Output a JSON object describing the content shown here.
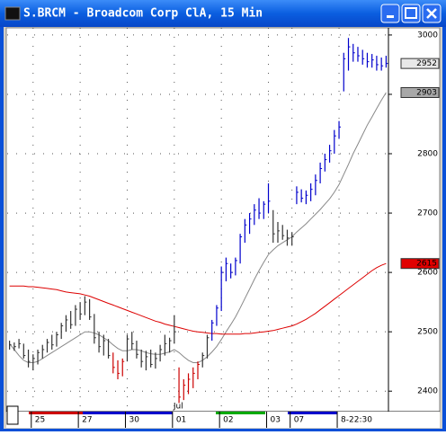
{
  "chart_data": {
    "type": "ohlc",
    "title": "S.BRCM - Broadcom Corp ClA, 15 Min",
    "categories": [
      null,
      null,
      null,
      null,
      null,
      "25",
      null,
      null,
      null,
      null,
      null,
      null,
      null,
      null,
      null,
      "27",
      null,
      null,
      null,
      null,
      null,
      null,
      null,
      null,
      null,
      "30",
      null,
      null,
      null,
      null,
      null,
      null,
      null,
      null,
      null,
      "01",
      null,
      null,
      null,
      null,
      null,
      null,
      null,
      null,
      null,
      "02",
      null,
      null,
      null,
      null,
      null,
      null,
      null,
      null,
      null,
      "03",
      null,
      null,
      null,
      null,
      "07",
      null,
      null,
      null,
      null,
      null,
      null,
      null,
      null,
      null,
      "8-22:30",
      null,
      null,
      null,
      null,
      null,
      null,
      null,
      null,
      null,
      null
    ],
    "high": [
      2485,
      2482,
      2488,
      2480,
      2470,
      2462,
      2470,
      2478,
      2488,
      2495,
      2500,
      2515,
      2528,
      2535,
      2545,
      2550,
      2560,
      2555,
      2530,
      2500,
      2495,
      2488,
      2465,
      2452,
      2455,
      2495,
      2500,
      2485,
      2470,
      2468,
      2470,
      2465,
      2478,
      2495,
      2490,
      2528,
      2440,
      2420,
      2430,
      2440,
      2450,
      2465,
      2495,
      2520,
      2545,
      2610,
      2625,
      2615,
      2625,
      2665,
      2690,
      2700,
      2715,
      2725,
      2720,
      2750,
      2705,
      2685,
      2680,
      2672,
      2668,
      2745,
      2740,
      2738,
      2750,
      2765,
      2785,
      2800,
      2815,
      2840,
      2855,
      2970,
      2995,
      2985,
      2980,
      2975,
      2970,
      2968,
      2965,
      2962,
      2965
    ],
    "low": [
      2470,
      2468,
      2472,
      2455,
      2440,
      2435,
      2445,
      2455,
      2465,
      2470,
      2475,
      2488,
      2500,
      2505,
      2510,
      2520,
      2528,
      2520,
      2480,
      2465,
      2460,
      2455,
      2430,
      2420,
      2425,
      2450,
      2470,
      2455,
      2440,
      2435,
      2440,
      2438,
      2450,
      2460,
      2465,
      2480,
      2380,
      2385,
      2395,
      2405,
      2420,
      2440,
      2455,
      2485,
      2510,
      2535,
      2585,
      2590,
      2595,
      2615,
      2650,
      2665,
      2680,
      2690,
      2690,
      2700,
      2650,
      2650,
      2655,
      2645,
      2645,
      2715,
      2718,
      2715,
      2720,
      2730,
      2750,
      2770,
      2785,
      2800,
      2825,
      2905,
      2940,
      2955,
      2955,
      2950,
      2945,
      2945,
      2940,
      2940,
      2945
    ],
    "close": [
      2478,
      2475,
      2480,
      2460,
      2450,
      2455,
      2465,
      2470,
      2482,
      2478,
      2495,
      2510,
      2520,
      2512,
      2538,
      2530,
      2550,
      2525,
      2490,
      2475,
      2485,
      2460,
      2440,
      2430,
      2450,
      2488,
      2480,
      2462,
      2450,
      2458,
      2445,
      2455,
      2470,
      2480,
      2485,
      2500,
      2390,
      2410,
      2420,
      2430,
      2445,
      2460,
      2490,
      2515,
      2540,
      2600,
      2615,
      2600,
      2620,
      2660,
      2680,
      2690,
      2705,
      2700,
      2715,
      2720,
      2665,
      2670,
      2662,
      2658,
      2660,
      2735,
      2725,
      2730,
      2740,
      2755,
      2775,
      2790,
      2805,
      2830,
      2845,
      2960,
      2980,
      2970,
      2965,
      2960,
      2955,
      2958,
      2950,
      2948,
      2952
    ],
    "bar_colors": [
      "#333",
      "#333",
      "#333",
      "#333",
      "#333",
      "#333",
      "#333",
      "#333",
      "#333",
      "#333",
      "#333",
      "#333",
      "#333",
      "#333",
      "#333",
      "#333",
      "#333",
      "#333",
      "#333",
      "#333",
      "#333",
      "#333",
      "#c00",
      "#c00",
      "#c00",
      "#333",
      "#333",
      "#333",
      "#333",
      "#333",
      "#333",
      "#333",
      "#333",
      "#333",
      "#333",
      "#333",
      "#c00",
      "#c00",
      "#c00",
      "#c00",
      "#c00",
      "#333",
      "#333",
      "#00c",
      "#00c",
      "#00c",
      "#00c",
      "#00c",
      "#00c",
      "#00c",
      "#00c",
      "#00c",
      "#00c",
      "#00c",
      "#00c",
      "#00c",
      "#333",
      "#333",
      "#333",
      "#333",
      "#333",
      "#00c",
      "#00c",
      "#00c",
      "#00c",
      "#00c",
      "#00c",
      "#00c",
      "#00c",
      "#00c",
      "#00c",
      "#00c",
      "#00c",
      "#00c",
      "#00c",
      "#00c",
      "#00c",
      "#00c",
      "#00c",
      "#00c",
      "#00c"
    ],
    "overlays": [
      {
        "color": "#888",
        "values": [
          2480,
          2470,
          2460,
          2452,
          2448,
          2448,
          2450,
          2455,
          2460,
          2465,
          2470,
          2475,
          2480,
          2485,
          2490,
          2495,
          2500,
          2500,
          2498,
          2495,
          2490,
          2485,
          2478,
          2472,
          2468,
          2468,
          2470,
          2470,
          2468,
          2465,
          2463,
          2462,
          2462,
          2464,
          2466,
          2470,
          2465,
          2458,
          2452,
          2448,
          2448,
          2452,
          2458,
          2466,
          2475,
          2487,
          2500,
          2512,
          2525,
          2540,
          2556,
          2572,
          2588,
          2603,
          2617,
          2630,
          2638,
          2645,
          2650,
          2655,
          2660,
          2668,
          2675,
          2682,
          2690,
          2698,
          2706,
          2715,
          2724,
          2735,
          2748,
          2765,
          2782,
          2800,
          2816,
          2832,
          2848,
          2862,
          2876,
          2890,
          2903
        ]
      },
      {
        "color": "#d00",
        "values": [
          2577,
          2577,
          2577,
          2577,
          2576,
          2576,
          2575,
          2574,
          2573,
          2572,
          2571,
          2569,
          2567,
          2566,
          2565,
          2564,
          2562,
          2560,
          2557,
          2554,
          2551,
          2548,
          2545,
          2542,
          2539,
          2536,
          2533,
          2530,
          2527,
          2524,
          2521,
          2518,
          2516,
          2513,
          2511,
          2509,
          2507,
          2505,
          2503,
          2501,
          2500,
          2499,
          2498,
          2497,
          2497,
          2496,
          2496,
          2496,
          2496,
          2496,
          2497,
          2497,
          2498,
          2499,
          2500,
          2501,
          2502,
          2504,
          2506,
          2508,
          2510,
          2513,
          2517,
          2521,
          2526,
          2531,
          2537,
          2543,
          2549,
          2555,
          2561,
          2567,
          2573,
          2579,
          2585,
          2591,
          2597,
          2603,
          2608,
          2612,
          2615
        ]
      }
    ],
    "price_labels": [
      {
        "value": 2952,
        "fill": "#e8e8e8",
        "text_color": "#000"
      },
      {
        "value": 2903,
        "fill": "#a8a8a8",
        "text_color": "#000"
      },
      {
        "value": 2615,
        "fill": "#e00000",
        "text_color": "#fff"
      }
    ],
    "annotations": [
      {
        "text": "Jul",
        "category": "01"
      }
    ],
    "ylim": [
      2367,
      3012
    ],
    "yticks": [
      2400,
      2500,
      2600,
      2700,
      2800,
      2900,
      3000
    ],
    "grid": "dotted"
  }
}
